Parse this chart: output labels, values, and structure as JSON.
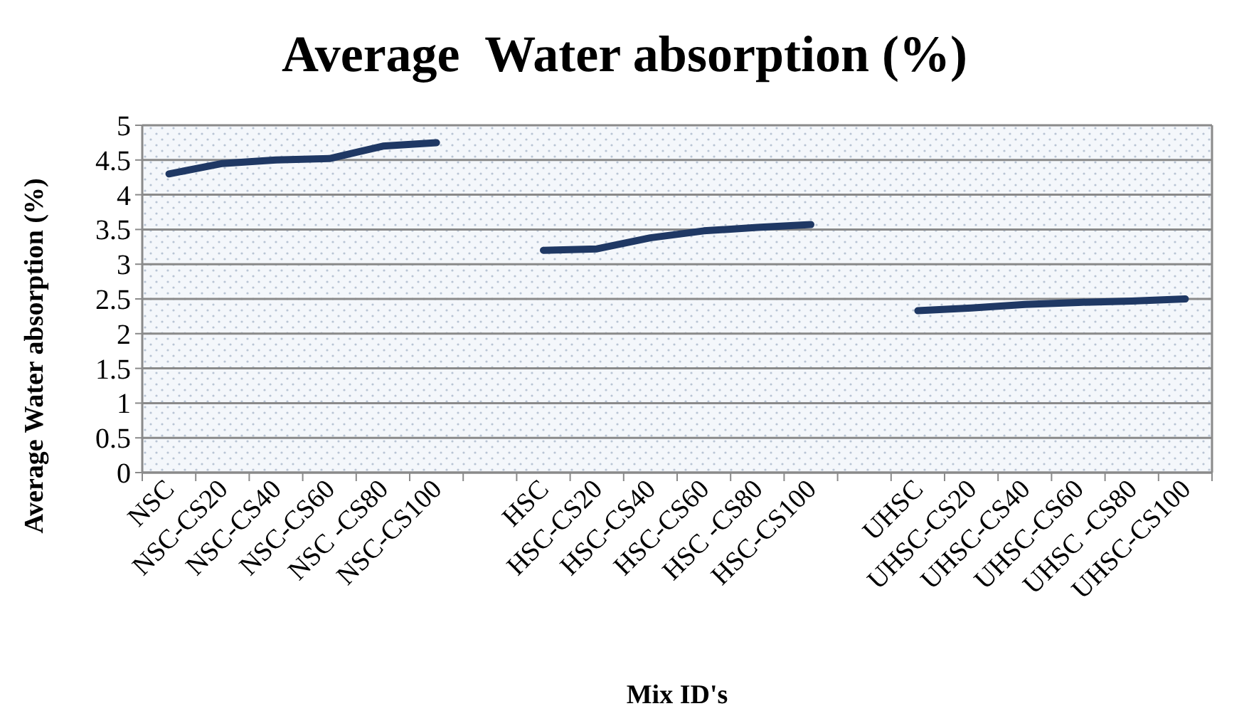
{
  "chart_data": {
    "type": "line",
    "title": "Average  Water absorption (%)",
    "xlabel": "Mix ID's",
    "ylabel": "Average Water absorption (%)",
    "categories": [
      "NSC",
      "NSC-CS20",
      "NSC-CS40",
      "NSC-CS60",
      "NSC -CS80",
      "NSC-CS100",
      null,
      "HSC",
      "HSC-CS20",
      "HSC-CS40",
      "HSC-CS60",
      "HSC -CS80",
      "HSC-CS100",
      null,
      "UHSC",
      "UHSC-CS20",
      "UHSC-CS40",
      "UHSC-CS60",
      "UHSC -CS80",
      "UHSC-CS100"
    ],
    "series": [
      {
        "color": "#1f3864",
        "values": [
          4.3,
          4.45,
          4.5,
          4.52,
          4.7,
          4.75,
          null,
          3.2,
          3.22,
          3.38,
          3.48,
          3.53,
          3.57,
          null,
          2.33,
          2.37,
          2.42,
          2.45,
          2.47,
          2.5
        ]
      }
    ],
    "ylim": [
      0,
      5
    ],
    "yticks": [
      0,
      0.5,
      1,
      1.5,
      2,
      2.5,
      3,
      3.5,
      4,
      4.5,
      5
    ],
    "grid": "y",
    "marker": "none",
    "line_style": "solid"
  }
}
